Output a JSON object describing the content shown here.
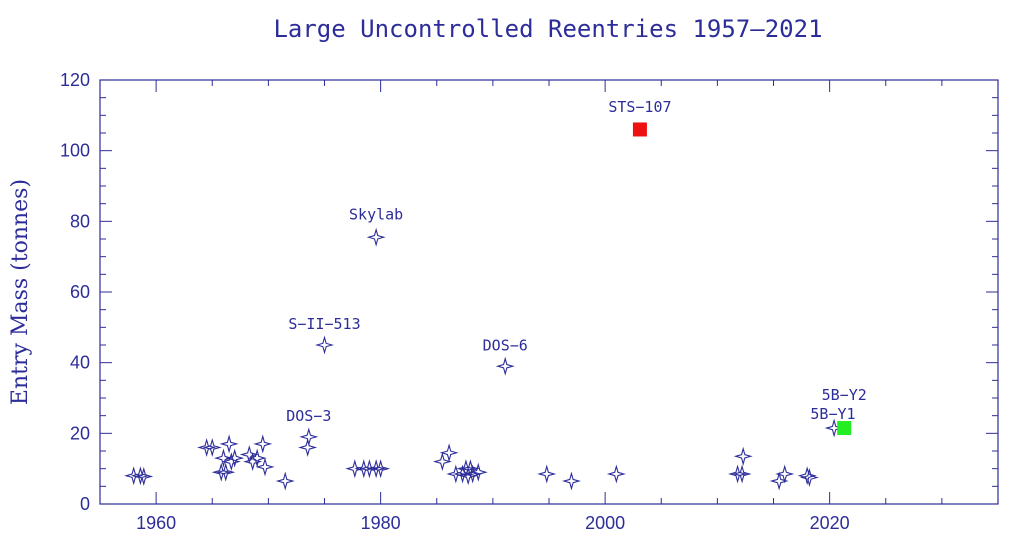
{
  "chart_data": {
    "type": "scatter",
    "title": "Large Uncontrolled Reentries 1957–2021",
    "xlabel": "",
    "ylabel": "Entry Mass (tonnes)",
    "xlim": [
      1955,
      2035
    ],
    "ylim": [
      0,
      120
    ],
    "xticks": [
      1960,
      1980,
      2000,
      2020
    ],
    "yticks": [
      0,
      20,
      40,
      60,
      80,
      100,
      120
    ],
    "grid": false,
    "colors": {
      "axis": "#2d2d9a",
      "marker": "#2d2d9a",
      "sts107": "#ee1111",
      "y2": "#22ee22"
    },
    "series": [
      {
        "marker": "star",
        "points": [
          {
            "x": 1958.0,
            "y": 8.0
          },
          {
            "x": 1958.6,
            "y": 8.0
          },
          {
            "x": 1958.9,
            "y": 7.8
          },
          {
            "x": 1964.5,
            "y": 16.0
          },
          {
            "x": 1965.0,
            "y": 16.0
          },
          {
            "x": 1965.8,
            "y": 9.0
          },
          {
            "x": 1966.0,
            "y": 13.0
          },
          {
            "x": 1966.2,
            "y": 9.0
          },
          {
            "x": 1966.5,
            "y": 17.0
          },
          {
            "x": 1966.7,
            "y": 12.0
          },
          {
            "x": 1967.0,
            "y": 13.0
          },
          {
            "x": 1968.3,
            "y": 14.0
          },
          {
            "x": 1968.6,
            "y": 12.0
          },
          {
            "x": 1969.0,
            "y": 13.0
          },
          {
            "x": 1969.5,
            "y": 17.0
          },
          {
            "x": 1969.7,
            "y": 10.5
          },
          {
            "x": 1971.5,
            "y": 6.5
          },
          {
            "x": 1973.5,
            "y": 16.0
          },
          {
            "x": 1973.6,
            "y": 19.0
          },
          {
            "x": 1975.0,
            "y": 45.0
          },
          {
            "x": 1977.7,
            "y": 10.0
          },
          {
            "x": 1978.5,
            "y": 10.0
          },
          {
            "x": 1979.0,
            "y": 10.0
          },
          {
            "x": 1979.6,
            "y": 10.0
          },
          {
            "x": 1979.6,
            "y": 75.5
          },
          {
            "x": 1980.0,
            "y": 10.0
          },
          {
            "x": 1985.5,
            "y": 12.0
          },
          {
            "x": 1986.1,
            "y": 14.5
          },
          {
            "x": 1986.7,
            "y": 8.5
          },
          {
            "x": 1987.3,
            "y": 8.5
          },
          {
            "x": 1987.6,
            "y": 10.0
          },
          {
            "x": 1987.8,
            "y": 8.0
          },
          {
            "x": 1988.0,
            "y": 10.0
          },
          {
            "x": 1988.2,
            "y": 8.5
          },
          {
            "x": 1988.7,
            "y": 9.0
          },
          {
            "x": 1991.1,
            "y": 39.0
          },
          {
            "x": 1994.8,
            "y": 8.5
          },
          {
            "x": 1997.0,
            "y": 6.5
          },
          {
            "x": 2001.0,
            "y": 8.5
          },
          {
            "x": 2011.8,
            "y": 8.5
          },
          {
            "x": 2012.2,
            "y": 8.5
          },
          {
            "x": 2012.3,
            "y": 13.5
          },
          {
            "x": 2015.5,
            "y": 6.5
          },
          {
            "x": 2016.0,
            "y": 8.5
          },
          {
            "x": 2018.0,
            "y": 8.0
          },
          {
            "x": 2018.2,
            "y": 7.5
          },
          {
            "x": 2020.4,
            "y": 21.5
          }
        ]
      },
      {
        "marker": "square",
        "color": "#ee1111",
        "points": [
          {
            "x": 2003.1,
            "y": 106.0
          }
        ]
      },
      {
        "marker": "square",
        "color": "#22ee22",
        "points": [
          {
            "x": 2021.3,
            "y": 21.5
          }
        ]
      }
    ],
    "annotations": [
      {
        "text": "STS−107",
        "x": 2003.1,
        "y": 111
      },
      {
        "text": "Skylab",
        "x": 1979.6,
        "y": 80.5
      },
      {
        "text": "S−II−513",
        "x": 1975.0,
        "y": 49.5
      },
      {
        "text": "DOS−6",
        "x": 1991.1,
        "y": 43.5
      },
      {
        "text": "DOS−3",
        "x": 1973.6,
        "y": 23.5
      },
      {
        "text": "5B−Y2",
        "x": 2021.3,
        "y": 29.5
      },
      {
        "text": "5B−Y1",
        "x": 2020.3,
        "y": 24.0
      }
    ]
  }
}
